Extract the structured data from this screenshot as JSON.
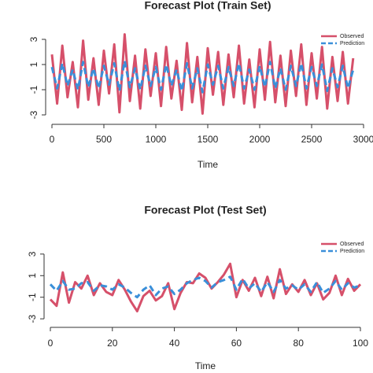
{
  "chart_data": [
    {
      "type": "line",
      "title": "Forecast Plot (Train Set)",
      "xlabel": "Time",
      "x": [
        0,
        50,
        100,
        150,
        200,
        250,
        300,
        350,
        400,
        450,
        500,
        550,
        600,
        650,
        700,
        750,
        800,
        850,
        900,
        950,
        1000,
        1050,
        1100,
        1150,
        1200,
        1250,
        1300,
        1350,
        1400,
        1450,
        1500,
        1550,
        1600,
        1650,
        1700,
        1750,
        1800,
        1850,
        1900,
        1950,
        2000,
        2050,
        2100,
        2150,
        2200,
        2250,
        2300,
        2350,
        2400,
        2450,
        2500,
        2550,
        2600,
        2650,
        2700,
        2750,
        2800,
        2850,
        2900
      ],
      "series": [
        {
          "name": "Observed",
          "color": "#d6506a",
          "dash": false,
          "values": [
            1.8,
            -2.1,
            2.5,
            -1.6,
            1.2,
            -2.4,
            2.9,
            -1.8,
            1.5,
            -2.2,
            2.1,
            -1.3,
            2.6,
            -2.8,
            3.4,
            -1.9,
            1.7,
            -2.5,
            2.2,
            -1.5,
            1.9,
            -2.3,
            2.4,
            -1.7,
            1.3,
            -2.6,
            2.7,
            -2.0,
            1.6,
            -2.9,
            2.3,
            -1.4,
            2.0,
            -2.2,
            1.8,
            -1.6,
            2.5,
            -2.1,
            1.4,
            -2.4,
            2.2,
            -1.8,
            2.8,
            -2.0,
            1.7,
            -2.3,
            2.1,
            -1.5,
            2.6,
            -2.2,
            1.9,
            -1.7,
            2.4,
            -2.5,
            1.6,
            -1.9,
            2.0,
            -2.1,
            1.5
          ]
        },
        {
          "name": "Prediction",
          "color": "#3a8fd9",
          "dash": true,
          "values": [
            0.8,
            -0.9,
            1.1,
            -0.7,
            0.6,
            -1.0,
            1.2,
            -0.8,
            0.7,
            -0.9,
            0.9,
            -0.6,
            1.1,
            -1.1,
            1.3,
            -0.8,
            0.7,
            -1.0,
            0.9,
            -0.7,
            0.8,
            -1.0,
            1.0,
            -0.7,
            0.6,
            -1.1,
            1.1,
            -0.9,
            0.7,
            -1.2,
            1.0,
            -0.6,
            0.9,
            -0.9,
            0.8,
            -0.7,
            1.1,
            -0.9,
            0.6,
            -1.0,
            0.9,
            -0.8,
            1.2,
            -0.9,
            0.7,
            -1.0,
            0.9,
            -0.7,
            1.1,
            -0.9,
            0.8,
            -0.7,
            1.0,
            -1.1,
            0.7,
            -0.8,
            0.9,
            -0.9,
            0.6
          ]
        }
      ],
      "xlim": [
        0,
        3000
      ],
      "xticks": [
        0,
        500,
        1000,
        1500,
        2000,
        2500,
        3000
      ],
      "ylim": [
        -3.5,
        3.5
      ],
      "yticks": [
        -3,
        -1,
        1,
        3
      ],
      "legend": "top-right"
    },
    {
      "type": "line",
      "title": "Forecast Plot (Test Set)",
      "xlabel": "Time",
      "x": [
        0,
        2,
        4,
        6,
        8,
        10,
        12,
        14,
        16,
        18,
        20,
        22,
        24,
        26,
        28,
        30,
        32,
        34,
        36,
        38,
        40,
        42,
        44,
        46,
        48,
        50,
        52,
        54,
        56,
        58,
        60,
        62,
        64,
        66,
        68,
        70,
        72,
        74,
        76,
        78,
        80,
        82,
        84,
        86,
        88,
        90,
        92,
        94,
        96,
        98,
        100
      ],
      "series": [
        {
          "name": "Observed",
          "color": "#d6506a",
          "dash": false,
          "values": [
            -1.2,
            -1.8,
            1.3,
            -1.5,
            0.4,
            -0.2,
            1.0,
            -0.8,
            0.3,
            -0.5,
            -0.8,
            0.6,
            -0.3,
            -1.4,
            -2.3,
            -0.9,
            -0.4,
            -1.3,
            -0.9,
            0.3,
            -2.1,
            -0.6,
            0.4,
            0.3,
            1.2,
            0.8,
            -0.2,
            0.4,
            1.1,
            2.1,
            -1.0,
            0.6,
            -0.4,
            0.8,
            -0.9,
            0.9,
            -1.1,
            1.6,
            -0.7,
            0.2,
            -0.5,
            0.6,
            -0.8,
            0.3,
            -1.2,
            -0.6,
            1.0,
            -0.8,
            0.7,
            -0.4,
            0.2
          ]
        },
        {
          "name": "Prediction",
          "color": "#3a8fd9",
          "dash": true,
          "values": [
            0.2,
            -0.4,
            0.5,
            -0.3,
            -0.2,
            0.3,
            0.4,
            -0.4,
            0.1,
            0.0,
            -0.3,
            0.2,
            -0.1,
            -0.6,
            -1.0,
            -0.3,
            0.1,
            -0.8,
            -0.2,
            0.0,
            -0.7,
            -0.3,
            0.3,
            0.6,
            0.8,
            0.5,
            -0.1,
            0.4,
            0.6,
            0.9,
            -0.3,
            0.7,
            -0.2,
            0.3,
            -0.5,
            0.4,
            -0.5,
            0.6,
            -0.2,
            0.1,
            -0.3,
            0.2,
            -0.5,
            0.4,
            -0.6,
            -0.2,
            0.5,
            -0.3,
            0.3,
            -0.1,
            0.1
          ]
        }
      ],
      "xlim": [
        0,
        100
      ],
      "xticks": [
        0,
        20,
        40,
        60,
        80,
        100
      ],
      "ylim": [
        -3.5,
        3.5
      ],
      "yticks": [
        -3,
        -1,
        1,
        3
      ],
      "legend": "top-right"
    }
  ]
}
